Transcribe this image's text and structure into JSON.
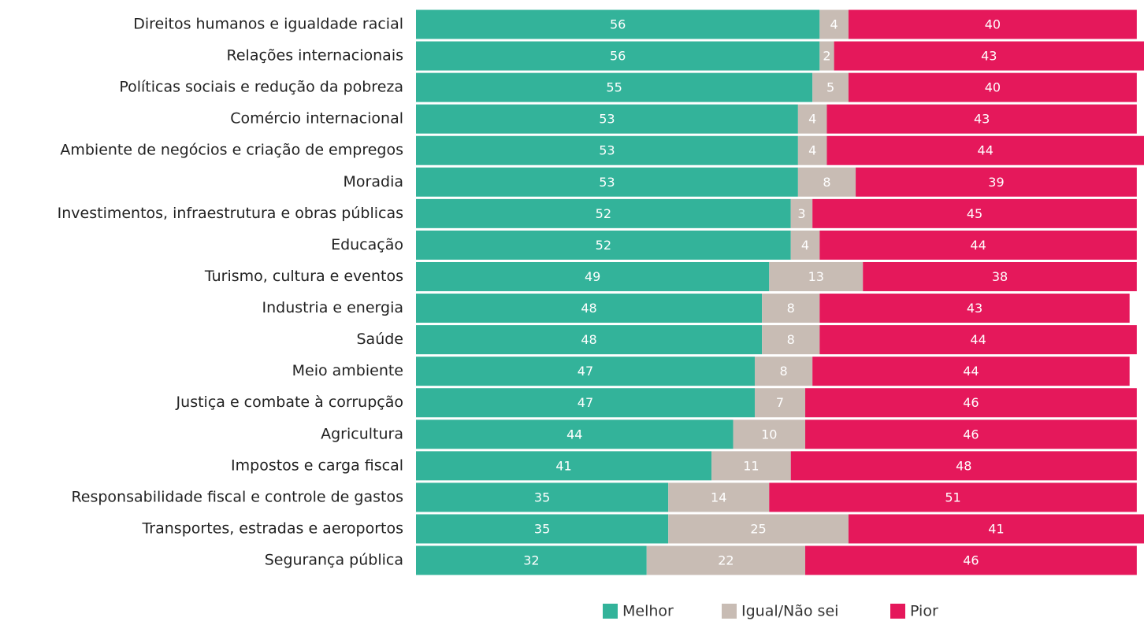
{
  "chart_data": {
    "type": "bar",
    "orientation": "horizontal",
    "stacked": true,
    "categories": [
      "Direitos humanos e igualdade racial",
      "Relações internacionais",
      "Políticas sociais e redução da pobreza",
      "Comércio internacional",
      "Ambiente de negócios e criação de empregos",
      "Moradia",
      "Investimentos, infraestrutura e obras públicas",
      "Educação",
      "Turismo, cultura e eventos",
      "Industria e energia",
      "Saúde",
      "Meio ambiente",
      "Justiça e combate à corrupção",
      "Agricultura",
      "Impostos e carga fiscal",
      "Responsabilidade fiscal e controle de gastos",
      "Transportes, estradas e aeroportos",
      "Segurança pública"
    ],
    "series": [
      {
        "name": "Melhor",
        "color": "#33b39a",
        "values": [
          56,
          56,
          55,
          53,
          53,
          53,
          52,
          52,
          49,
          48,
          48,
          47,
          47,
          44,
          41,
          35,
          35,
          32
        ]
      },
      {
        "name": "Igual/Não sei",
        "color": "#c8bcb4",
        "values": [
          4,
          2,
          5,
          4,
          4,
          8,
          3,
          4,
          13,
          8,
          8,
          8,
          7,
          10,
          11,
          14,
          25,
          22
        ]
      },
      {
        "name": "Pior",
        "color": "#e5185b",
        "values": [
          40,
          43,
          40,
          43,
          44,
          39,
          45,
          44,
          38,
          43,
          44,
          44,
          46,
          46,
          48,
          51,
          41,
          46
        ]
      }
    ],
    "xlim": [
      0,
      101
    ],
    "legend": "bottom"
  }
}
